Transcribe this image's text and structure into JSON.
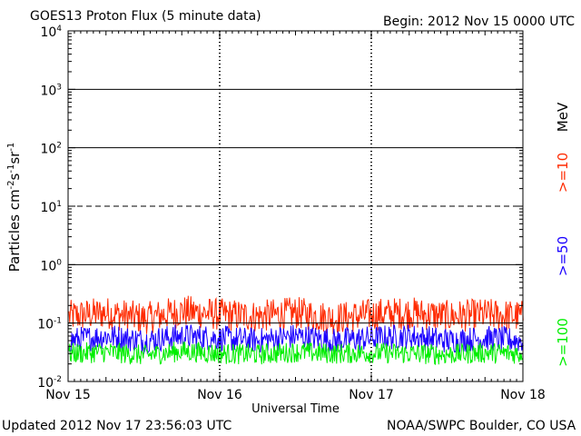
{
  "title": "GOES13 Proton Flux (5 minute data)",
  "begin_label": "Begin: 2012 Nov 15 0000 UTC",
  "updated_label": "Updated 2012 Nov 17 23:56:03 UTC",
  "credit_label": "NOAA/SWPC Boulder, CO USA",
  "colors": {
    "ge10": "#ff2a00",
    "ge50": "#1a00ff",
    "ge100": "#00ee00",
    "axis": "#000000"
  },
  "chart_data": {
    "type": "line",
    "title": "GOES13 Proton Flux (5 minute data)",
    "xlabel": "Universal Time",
    "ylabel": "Particles cm-2s-1sr-1",
    "y_scale": "log",
    "ylim": [
      0.01,
      10000
    ],
    "xlim": [
      "2012-11-15 00:00",
      "2012-11-18 00:00"
    ],
    "x_ticks": [
      "Nov 15",
      "Nov 16",
      "Nov 17",
      "Nov 18"
    ],
    "y_ticks": [
      {
        "base": "10",
        "exp": "4"
      },
      {
        "base": "10",
        "exp": "3"
      },
      {
        "base": "10",
        "exp": "2"
      },
      {
        "base": "10",
        "exp": "1"
      },
      {
        "base": "10",
        "exp": "0"
      },
      {
        "base": "10",
        "exp": "-1"
      },
      {
        "base": "10",
        "exp": "-2"
      }
    ],
    "legend_unit": "MeV",
    "legend_placement": "right",
    "threshold_line_y": 10,
    "series": [
      {
        "name": ">=10",
        "color": "#ff2a00",
        "x": [
          "2012-11-15 00:00",
          "2012-11-15 06:00",
          "2012-11-15 12:00",
          "2012-11-15 18:00",
          "2012-11-16 00:00",
          "2012-11-16 06:00",
          "2012-11-16 12:00",
          "2012-11-16 18:00",
          "2012-11-17 00:00",
          "2012-11-17 06:00",
          "2012-11-17 12:00",
          "2012-11-17 18:00",
          "2012-11-18 00:00"
        ],
        "values": [
          0.13,
          0.15,
          0.12,
          0.16,
          0.14,
          0.13,
          0.15,
          0.12,
          0.14,
          0.15,
          0.13,
          0.14,
          0.13
        ]
      },
      {
        "name": ">=50",
        "color": "#1a00ff",
        "x": [
          "2012-11-15 00:00",
          "2012-11-15 06:00",
          "2012-11-15 12:00",
          "2012-11-15 18:00",
          "2012-11-16 00:00",
          "2012-11-16 06:00",
          "2012-11-16 12:00",
          "2012-11-16 18:00",
          "2012-11-17 00:00",
          "2012-11-17 06:00",
          "2012-11-17 12:00",
          "2012-11-17 18:00",
          "2012-11-18 00:00"
        ],
        "values": [
          0.05,
          0.06,
          0.05,
          0.06,
          0.055,
          0.05,
          0.06,
          0.05,
          0.055,
          0.06,
          0.05,
          0.055,
          0.05
        ]
      },
      {
        "name": ">=100",
        "color": "#00ee00",
        "x": [
          "2012-11-15 00:00",
          "2012-11-15 06:00",
          "2012-11-15 12:00",
          "2012-11-15 18:00",
          "2012-11-16 00:00",
          "2012-11-16 06:00",
          "2012-11-16 12:00",
          "2012-11-16 18:00",
          "2012-11-17 00:00",
          "2012-11-17 06:00",
          "2012-11-17 12:00",
          "2012-11-17 18:00",
          "2012-11-18 00:00"
        ],
        "values": [
          0.03,
          0.032,
          0.028,
          0.033,
          0.03,
          0.029,
          0.032,
          0.03,
          0.031,
          0.03,
          0.029,
          0.031,
          0.03
        ]
      }
    ]
  }
}
